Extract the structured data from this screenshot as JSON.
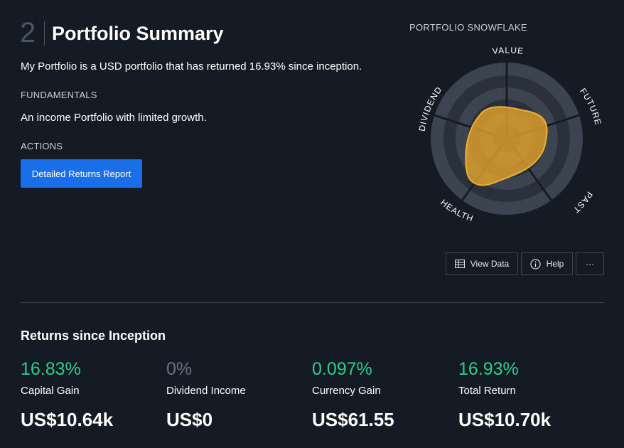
{
  "header": {
    "section_number": "2",
    "title": "Portfolio Summary"
  },
  "summary": "My Portfolio is a USD portfolio that has returned 16.93% since inception.",
  "fundamentals": {
    "label": "FUNDAMENTALS",
    "text": "An income Portfolio with limited growth."
  },
  "actions": {
    "label": "ACTIONS",
    "button_label": "Detailed Returns Report"
  },
  "snowflake": {
    "title": "PORTFOLIO SNOWFLAKE",
    "axes": [
      "VALUE",
      "FUTURE",
      "PAST",
      "HEALTH",
      "DIVIDEND"
    ],
    "fill_color": "#e0a22a",
    "ring_colors": [
      "#3c4452",
      "#2b313c"
    ]
  },
  "toolbar": {
    "view_data": "View Data",
    "help": "Help",
    "more": "···"
  },
  "returns": {
    "title": "Returns since Inception",
    "stats": [
      {
        "pct": "16.83%",
        "label": "Capital Gain",
        "amount": "US$10.64k"
      },
      {
        "pct": "0%",
        "label": "Dividend Income",
        "amount": "US$0"
      },
      {
        "pct": "0.097%",
        "label": "Currency Gain",
        "amount": "US$61.55"
      },
      {
        "pct": "16.93%",
        "label": "Total Return",
        "amount": "US$10.70k"
      }
    ]
  }
}
